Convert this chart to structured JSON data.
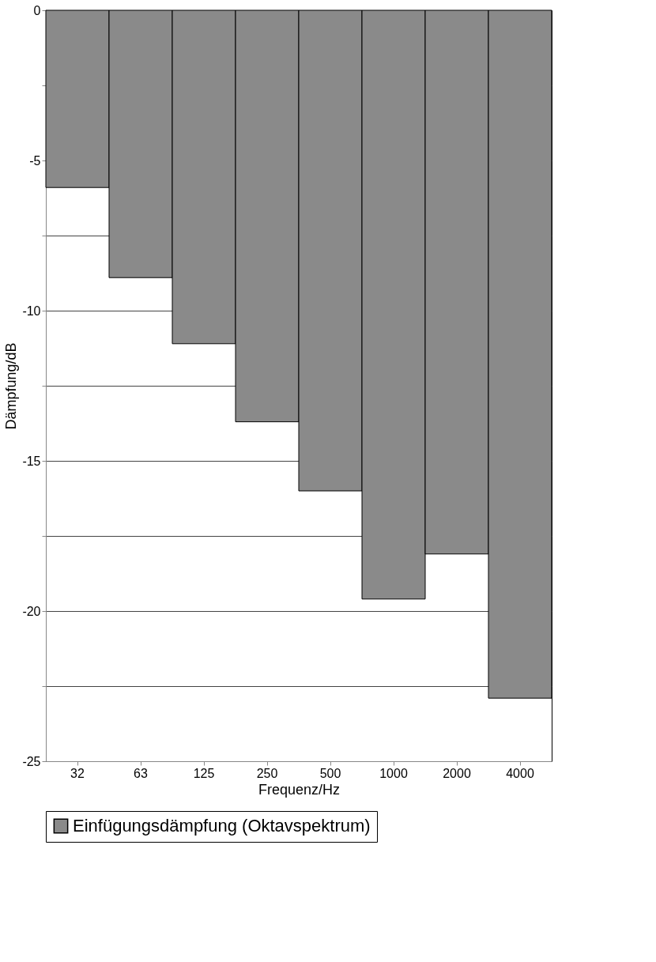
{
  "chart_data": {
    "type": "bar",
    "xlabel": "Frequenz/Hz",
    "ylabel": "Dämpfung/dB",
    "categories": [
      "32",
      "63",
      "125",
      "250",
      "500",
      "1000",
      "2000",
      "4000"
    ],
    "series": [
      {
        "name": "Einfügungsdämpfung (Oktavspektrum)",
        "color": "#8a8a8a",
        "values": [
          -5.9,
          -8.9,
          -11.1,
          -13.7,
          -16.0,
          -19.6,
          -18.1,
          -22.9
        ]
      }
    ],
    "ylim": [
      -25,
      0
    ],
    "yticks": [
      0,
      {
        "value": -2.5,
        "label": null
      },
      -5,
      {
        "value": -7.5,
        "label": null
      },
      -10,
      {
        "value": -12.5,
        "label": null
      },
      -15,
      {
        "value": -17.5,
        "label": null
      },
      -20,
      {
        "value": -22.5,
        "label": null
      },
      -25
    ],
    "grid": "y",
    "legend": "bottom"
  }
}
